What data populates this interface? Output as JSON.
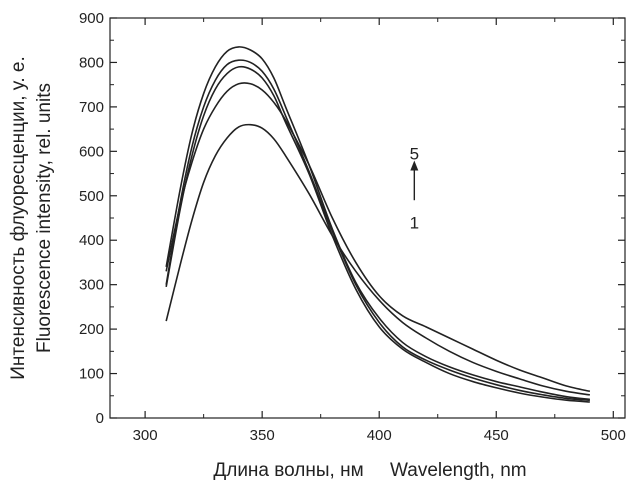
{
  "chart_data": {
    "type": "line",
    "title": "",
    "xlabel": "Длина волны, нм     Wavelength, nm",
    "ylabel_line1": "Интенсивность флуоресценции, у. е.",
    "ylabel_line2": "Fluorescence intensity, rel. units",
    "xlim": [
      285,
      505
    ],
    "ylim": [
      0,
      900
    ],
    "x_ticks": [
      300,
      350,
      400,
      450,
      500
    ],
    "y_ticks": [
      0,
      100,
      200,
      300,
      400,
      500,
      600,
      700,
      800,
      900
    ],
    "grid": false,
    "line_color": "#222222",
    "series": [
      {
        "x": [
          309,
          315,
          320,
          325,
          330,
          335,
          340,
          345,
          350,
          355,
          360,
          370,
          380,
          390,
          400,
          410,
          420,
          430,
          440,
          450,
          460,
          470,
          480,
          490
        ],
        "y": [
          218,
          345,
          445,
          530,
          590,
          630,
          655,
          660,
          652,
          628,
          590,
          505,
          410,
          330,
          265,
          215,
          180,
          150,
          125,
          105,
          88,
          72,
          60,
          52
        ]
      },
      {
        "x": [
          309,
          315,
          320,
          325,
          330,
          335,
          340,
          345,
          350,
          355,
          360,
          370,
          380,
          390,
          400,
          410,
          420,
          430,
          440,
          450,
          460,
          470,
          480,
          490
        ],
        "y": [
          330,
          480,
          575,
          650,
          700,
          735,
          752,
          752,
          738,
          710,
          670,
          570,
          450,
          350,
          275,
          230,
          205,
          180,
          155,
          130,
          108,
          90,
          72,
          60
        ]
      },
      {
        "x": [
          309,
          315,
          320,
          325,
          330,
          335,
          340,
          345,
          350,
          355,
          360,
          370,
          380,
          390,
          400,
          410,
          420,
          430,
          440,
          450,
          460,
          470,
          480,
          490
        ],
        "y": [
          295,
          470,
          590,
          680,
          740,
          775,
          790,
          785,
          765,
          725,
          665,
          550,
          410,
          290,
          205,
          155,
          125,
          100,
          82,
          68,
          56,
          47,
          40,
          36
        ]
      },
      {
        "x": [
          309,
          315,
          320,
          325,
          330,
          335,
          340,
          345,
          350,
          355,
          360,
          370,
          380,
          390,
          400,
          410,
          420,
          430,
          440,
          450,
          460,
          470,
          480,
          490
        ],
        "y": [
          300,
          485,
          610,
          700,
          760,
          795,
          805,
          800,
          780,
          740,
          680,
          555,
          420,
          300,
          215,
          160,
          130,
          108,
          90,
          75,
          62,
          52,
          44,
          40
        ]
      },
      {
        "x": [
          309,
          315,
          320,
          325,
          330,
          335,
          340,
          345,
          350,
          355,
          360,
          370,
          380,
          390,
          400,
          410,
          420,
          430,
          440,
          450,
          460,
          470,
          480,
          490
        ],
        "y": [
          340,
          515,
          640,
          730,
          790,
          825,
          835,
          828,
          808,
          765,
          700,
          570,
          425,
          305,
          225,
          170,
          138,
          115,
          97,
          82,
          70,
          58,
          48,
          42
        ]
      }
    ],
    "annotations": {
      "top_label": "5",
      "bottom_label": "1",
      "arrow_x": 415,
      "arrow_y_from": 490,
      "arrow_y_to": 575,
      "top_label_y": 595,
      "bottom_label_y": 440
    }
  }
}
